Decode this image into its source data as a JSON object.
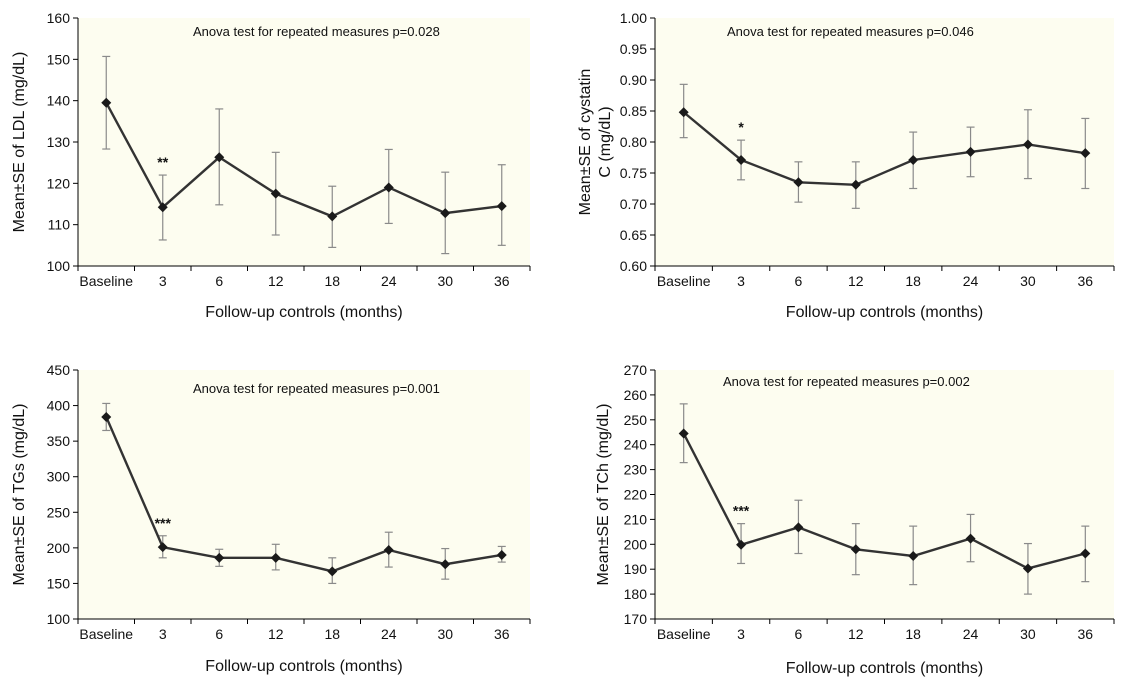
{
  "figure": {
    "background_color": "#fdfdf0",
    "line_color": "#333333",
    "errorbar_color": "#8a8a8a"
  },
  "chart_data": [
    {
      "type": "line",
      "title": "",
      "annotation": "Anova test for repeated measures p=0.028",
      "xlabel": "Follow-up controls (months)",
      "ylabel": "Mean±SE of LDL (mg/dL)",
      "categories": [
        "Baseline",
        "3",
        "6",
        "12",
        "18",
        "24",
        "30",
        "36"
      ],
      "ylim": [
        100,
        160
      ],
      "yticks": [
        100,
        110,
        120,
        130,
        140,
        150,
        160
      ],
      "y_decimals": 0,
      "series": [
        {
          "values": [
            139.5,
            114.2,
            126.3,
            117.5,
            112,
            119,
            112.8,
            114.5
          ],
          "se_upper": [
            150.7,
            122,
            138,
            127.5,
            119.3,
            128.2,
            122.7,
            124.5
          ],
          "se_lower": [
            128.3,
            106.3,
            114.8,
            107.5,
            104.5,
            110.3,
            103,
            105
          ]
        }
      ],
      "significance": [
        {
          "category": "3",
          "label": "**"
        }
      ]
    },
    {
      "type": "line",
      "title": "",
      "annotation": "Anova test for repeated measures p=0.046",
      "xlabel": "Follow-up controls (months)",
      "ylabel": "Mean±SE of cystatin C (mg/dL)",
      "ylabel_lines": [
        "Mean±SE of cystatin",
        "C (mg/dL)"
      ],
      "categories": [
        "Baseline",
        "3",
        "6",
        "12",
        "18",
        "24",
        "30",
        "36"
      ],
      "ylim": [
        0.6,
        1.0
      ],
      "yticks": [
        0.6,
        0.65,
        0.7,
        0.75,
        0.8,
        0.85,
        0.9,
        0.95,
        1.0
      ],
      "y_decimals": 2,
      "series": [
        {
          "values": [
            0.848,
            0.771,
            0.735,
            0.731,
            0.771,
            0.784,
            0.796,
            0.782
          ],
          "se_upper": [
            0.893,
            0.803,
            0.768,
            0.768,
            0.816,
            0.824,
            0.852,
            0.838
          ],
          "se_lower": [
            0.807,
            0.739,
            0.703,
            0.693,
            0.725,
            0.744,
            0.741,
            0.725
          ]
        }
      ],
      "significance": [
        {
          "category": "3",
          "label": "*"
        }
      ]
    },
    {
      "type": "line",
      "title": "",
      "annotation": "Anova test for repeated measures p=0.001",
      "xlabel": "Follow-up controls (months)",
      "ylabel": "Mean±SE of TGs (mg/dL)",
      "categories": [
        "Baseline",
        "3",
        "6",
        "12",
        "18",
        "24",
        "30",
        "36"
      ],
      "ylim": [
        100,
        450
      ],
      "yticks": [
        100,
        150,
        200,
        250,
        300,
        350,
        400,
        450
      ],
      "y_decimals": 0,
      "series": [
        {
          "values": [
            384,
            201,
            186,
            186,
            167,
            197,
            177,
            190
          ],
          "se_upper": [
            403,
            217,
            198,
            205,
            186,
            222,
            199,
            202
          ],
          "se_lower": [
            365,
            186,
            174,
            169,
            150,
            173,
            156,
            180
          ]
        }
      ],
      "significance": [
        {
          "category": "3",
          "label": "***"
        }
      ]
    },
    {
      "type": "line",
      "title": "",
      "annotation": "Anova test for repeated measures p=0.002",
      "xlabel": "Follow-up controls (months)",
      "ylabel": "Mean±SE of TCh (mg/dL)",
      "categories": [
        "Baseline",
        "3",
        "6",
        "12",
        "18",
        "24",
        "30",
        "36"
      ],
      "ylim": [
        170,
        270
      ],
      "yticks": [
        170,
        180,
        190,
        200,
        210,
        220,
        230,
        240,
        250,
        260,
        270
      ],
      "y_decimals": 0,
      "series": [
        {
          "values": [
            244.5,
            199.8,
            206.8,
            198,
            195.3,
            202.3,
            190.3,
            196.3
          ],
          "se_upper": [
            256.4,
            208.3,
            217.7,
            208.3,
            207.3,
            212,
            200.3,
            207.3
          ],
          "se_lower": [
            232.8,
            192.3,
            196.3,
            187.8,
            183.8,
            193,
            180,
            185
          ]
        }
      ],
      "significance": [
        {
          "category": "3",
          "label": "***"
        }
      ]
    }
  ]
}
